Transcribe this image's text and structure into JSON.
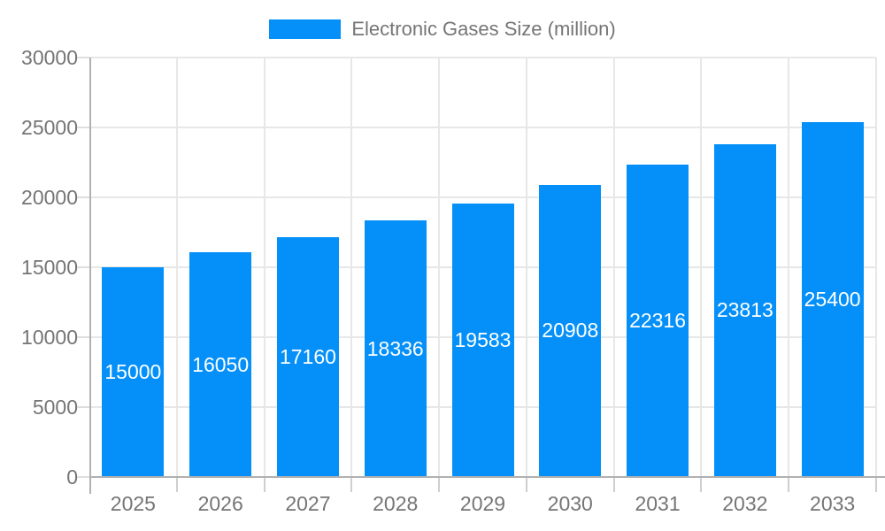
{
  "chart_data": {
    "type": "bar",
    "title": "Electronic Gases Size (million)",
    "categories": [
      "2025",
      "2026",
      "2027",
      "2028",
      "2029",
      "2030",
      "2031",
      "2032",
      "2033"
    ],
    "values": [
      15000,
      16050,
      17160,
      18336,
      19583,
      20908,
      22316,
      23813,
      25400
    ],
    "series": [
      {
        "name": "Electronic Gases Size (million)",
        "values": [
          15000,
          16050,
          17160,
          18336,
          19583,
          20908,
          22316,
          23813,
          25400
        ]
      }
    ],
    "xlabel": "",
    "ylabel": "",
    "ylim": [
      0,
      30000
    ],
    "yticks": [
      0,
      5000,
      10000,
      15000,
      20000,
      25000,
      30000
    ],
    "grid": true,
    "legend_position": "top-center",
    "value_labels": "inside bars, white, vertically centered"
  },
  "colors": {
    "bar": "#0590f9",
    "axis_line": "#b1b1b1",
    "gridline": "#e7e7e7",
    "tick_text": "#757575",
    "legend_text": "#757575",
    "value_label_text": "#ffffff",
    "background": "#ffffff"
  }
}
